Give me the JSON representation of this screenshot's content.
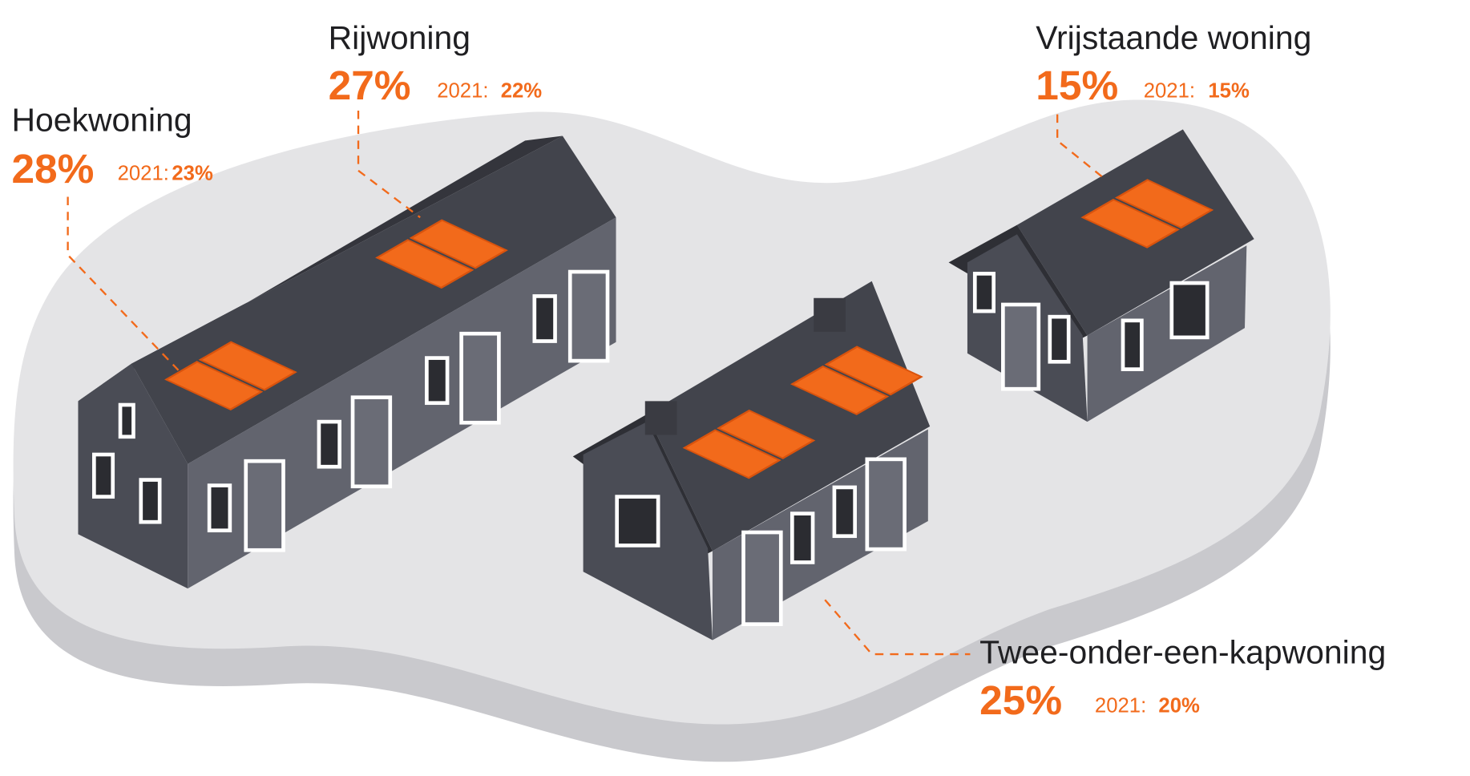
{
  "items": [
    {
      "name": "Hoekwoning",
      "share": "28%",
      "year": "2021:",
      "previous": "23%"
    },
    {
      "name": "Rijwoning",
      "share": "27%",
      "year": "2021:",
      "previous": "22%"
    },
    {
      "name": "Vrijstaande woning",
      "share": "15%",
      "year": "2021:",
      "previous": "15%"
    },
    {
      "name": "Twee-onder-een-kapwoning",
      "share": "25%",
      "year": "2021:",
      "previous": "20%"
    }
  ]
}
